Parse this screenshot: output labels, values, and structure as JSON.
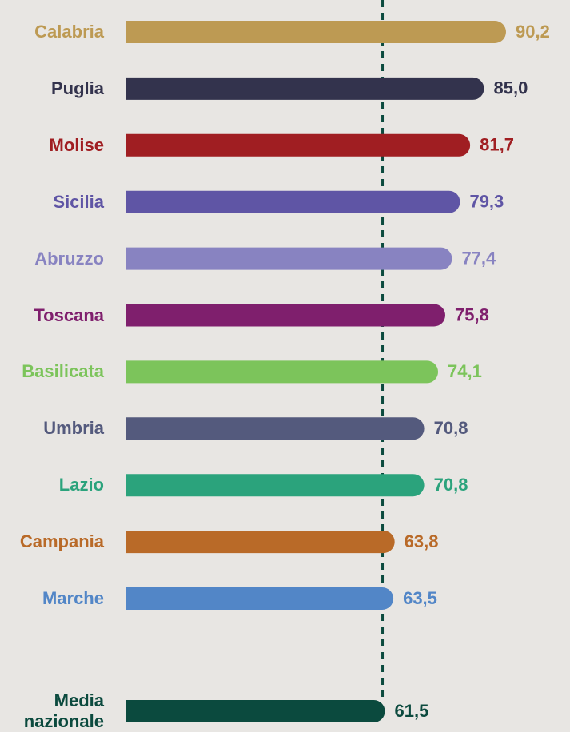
{
  "chart_data": {
    "type": "bar",
    "orientation": "horizontal",
    "categories": [
      "Calabria",
      "Puglia",
      "Molise",
      "Sicilia",
      "Abruzzo",
      "Toscana",
      "Basilicata",
      "Umbria",
      "Lazio",
      "Campania",
      "Marche",
      "Media nazionale"
    ],
    "values": [
      90.2,
      85.0,
      81.7,
      79.3,
      77.4,
      75.8,
      74.1,
      70.8,
      70.8,
      63.8,
      63.5,
      61.5
    ],
    "value_labels": [
      "90,2",
      "85,0",
      "81,7",
      "79,3",
      "77,4",
      "75,8",
      "74,1",
      "70,8",
      "70,8",
      "63,8",
      "63,5",
      "61,5"
    ],
    "colors": [
      "#bd9a53",
      "#33334d",
      "#a01e22",
      "#5f55a5",
      "#8883c1",
      "#7f1f6d",
      "#7cc45b",
      "#545a7d",
      "#2ba37c",
      "#b96a28",
      "#5286c7",
      "#0b4a3e"
    ]
  }
}
